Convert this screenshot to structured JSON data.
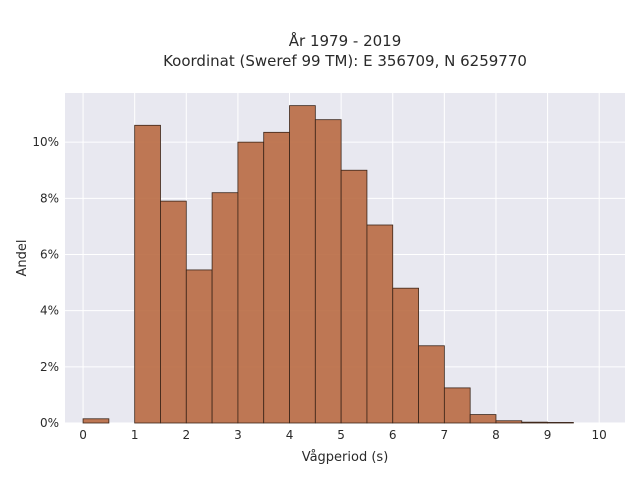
{
  "chart_data": {
    "type": "bar",
    "title_line1": "År 1979 - 2019",
    "title_line2": "Koordinat (Sweref 99 TM): E 356709, N 6259770",
    "xlabel": "Vågperiod (s)",
    "ylabel": "Andel",
    "xlim": [
      -0.35,
      10.5
    ],
    "ylim": [
      0,
      11.75
    ],
    "bin_width": 0.5,
    "bins": [
      {
        "x0": 0.0,
        "value": 0.15
      },
      {
        "x0": 0.5,
        "value": 0.0
      },
      {
        "x0": 1.0,
        "value": 10.6
      },
      {
        "x0": 1.5,
        "value": 7.9
      },
      {
        "x0": 2.0,
        "value": 5.45
      },
      {
        "x0": 2.5,
        "value": 8.2
      },
      {
        "x0": 3.0,
        "value": 10.0
      },
      {
        "x0": 3.5,
        "value": 10.35
      },
      {
        "x0": 4.0,
        "value": 11.3
      },
      {
        "x0": 4.5,
        "value": 10.8
      },
      {
        "x0": 5.0,
        "value": 9.0
      },
      {
        "x0": 5.5,
        "value": 7.05
      },
      {
        "x0": 6.0,
        "value": 4.8
      },
      {
        "x0": 6.5,
        "value": 2.75
      },
      {
        "x0": 7.0,
        "value": 1.25
      },
      {
        "x0": 7.5,
        "value": 0.3
      },
      {
        "x0": 8.0,
        "value": 0.08
      },
      {
        "x0": 8.5,
        "value": 0.03
      },
      {
        "x0": 9.0,
        "value": 0.02
      }
    ],
    "xticks": [
      0,
      1,
      2,
      3,
      4,
      5,
      6,
      7,
      8,
      9,
      10
    ],
    "xtick_labels": [
      "0",
      "1",
      "2",
      "3",
      "4",
      "5",
      "6",
      "7",
      "8",
      "9",
      "10"
    ],
    "yticks": [
      0,
      2,
      4,
      6,
      8,
      10
    ],
    "ytick_labels": [
      "0%",
      "2%",
      "4%",
      "6%",
      "8%",
      "10%"
    ],
    "grid": true,
    "legend": false,
    "colors": {
      "bar": "#b96a43",
      "bar_edge": "#3a2418",
      "plot_bg": "#e8e8f0",
      "grid": "#ffffff"
    }
  }
}
